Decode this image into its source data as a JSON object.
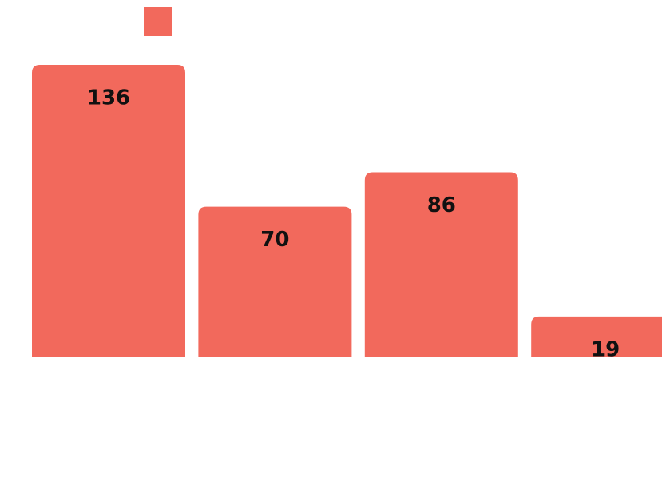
{
  "chart_data": {
    "type": "bar",
    "categories": [
      null,
      null,
      null,
      null
    ],
    "values": [
      136,
      70,
      86,
      19
    ],
    "color": "#f2695c",
    "legend": "top-left"
  }
}
